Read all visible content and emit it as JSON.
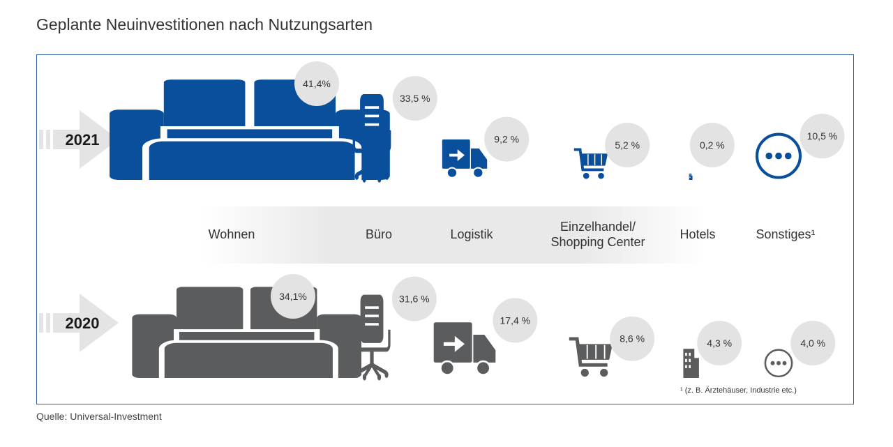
{
  "title": "Geplante Neuinvestitionen nach Nutzungsarten",
  "source": "Quelle: Universal-Investment",
  "colors": {
    "year2021": "#0a4f9c",
    "year2020": "#5a5c5e",
    "bubble": "#e3e3e3",
    "frame": "#2b5d9e"
  },
  "chart_data": {
    "type": "bar",
    "categories": [
      "Wohnen",
      "Büro",
      "Logistik",
      "Einzelhandel/ Shopping Center",
      "Hotels",
      "Sonstiges¹"
    ],
    "category_lines": [
      [
        "Wohnen"
      ],
      [
        "Büro"
      ],
      [
        "Logistik"
      ],
      [
        "Einzelhandel/",
        "Shopping Center"
      ],
      [
        "Hotels"
      ],
      [
        "Sonstiges¹"
      ]
    ],
    "icons": [
      "sofa-icon",
      "office-chair-icon",
      "truck-icon",
      "shopping-cart-icon",
      "hotel-building-icon",
      "more-dots-icon"
    ],
    "unit": "%",
    "series": [
      {
        "name": "2021",
        "values": [
          41.4,
          33.5,
          9.2,
          5.2,
          0.2,
          10.5
        ],
        "labels": [
          "41,4%",
          "33,5 %",
          "9,2 %",
          "5,2 %",
          "0,2 %",
          "10,5 %"
        ]
      },
      {
        "name": "2020",
        "values": [
          34.1,
          31.6,
          17.4,
          8.6,
          4.3,
          4.0
        ],
        "labels": [
          "34,1%",
          "31,6 %",
          "17,4 %",
          "8,6 %",
          "4,3 %",
          "4,0 %"
        ]
      }
    ],
    "footnote": "¹ (z. B. Ärztehäuser, Industrie etc.)"
  }
}
